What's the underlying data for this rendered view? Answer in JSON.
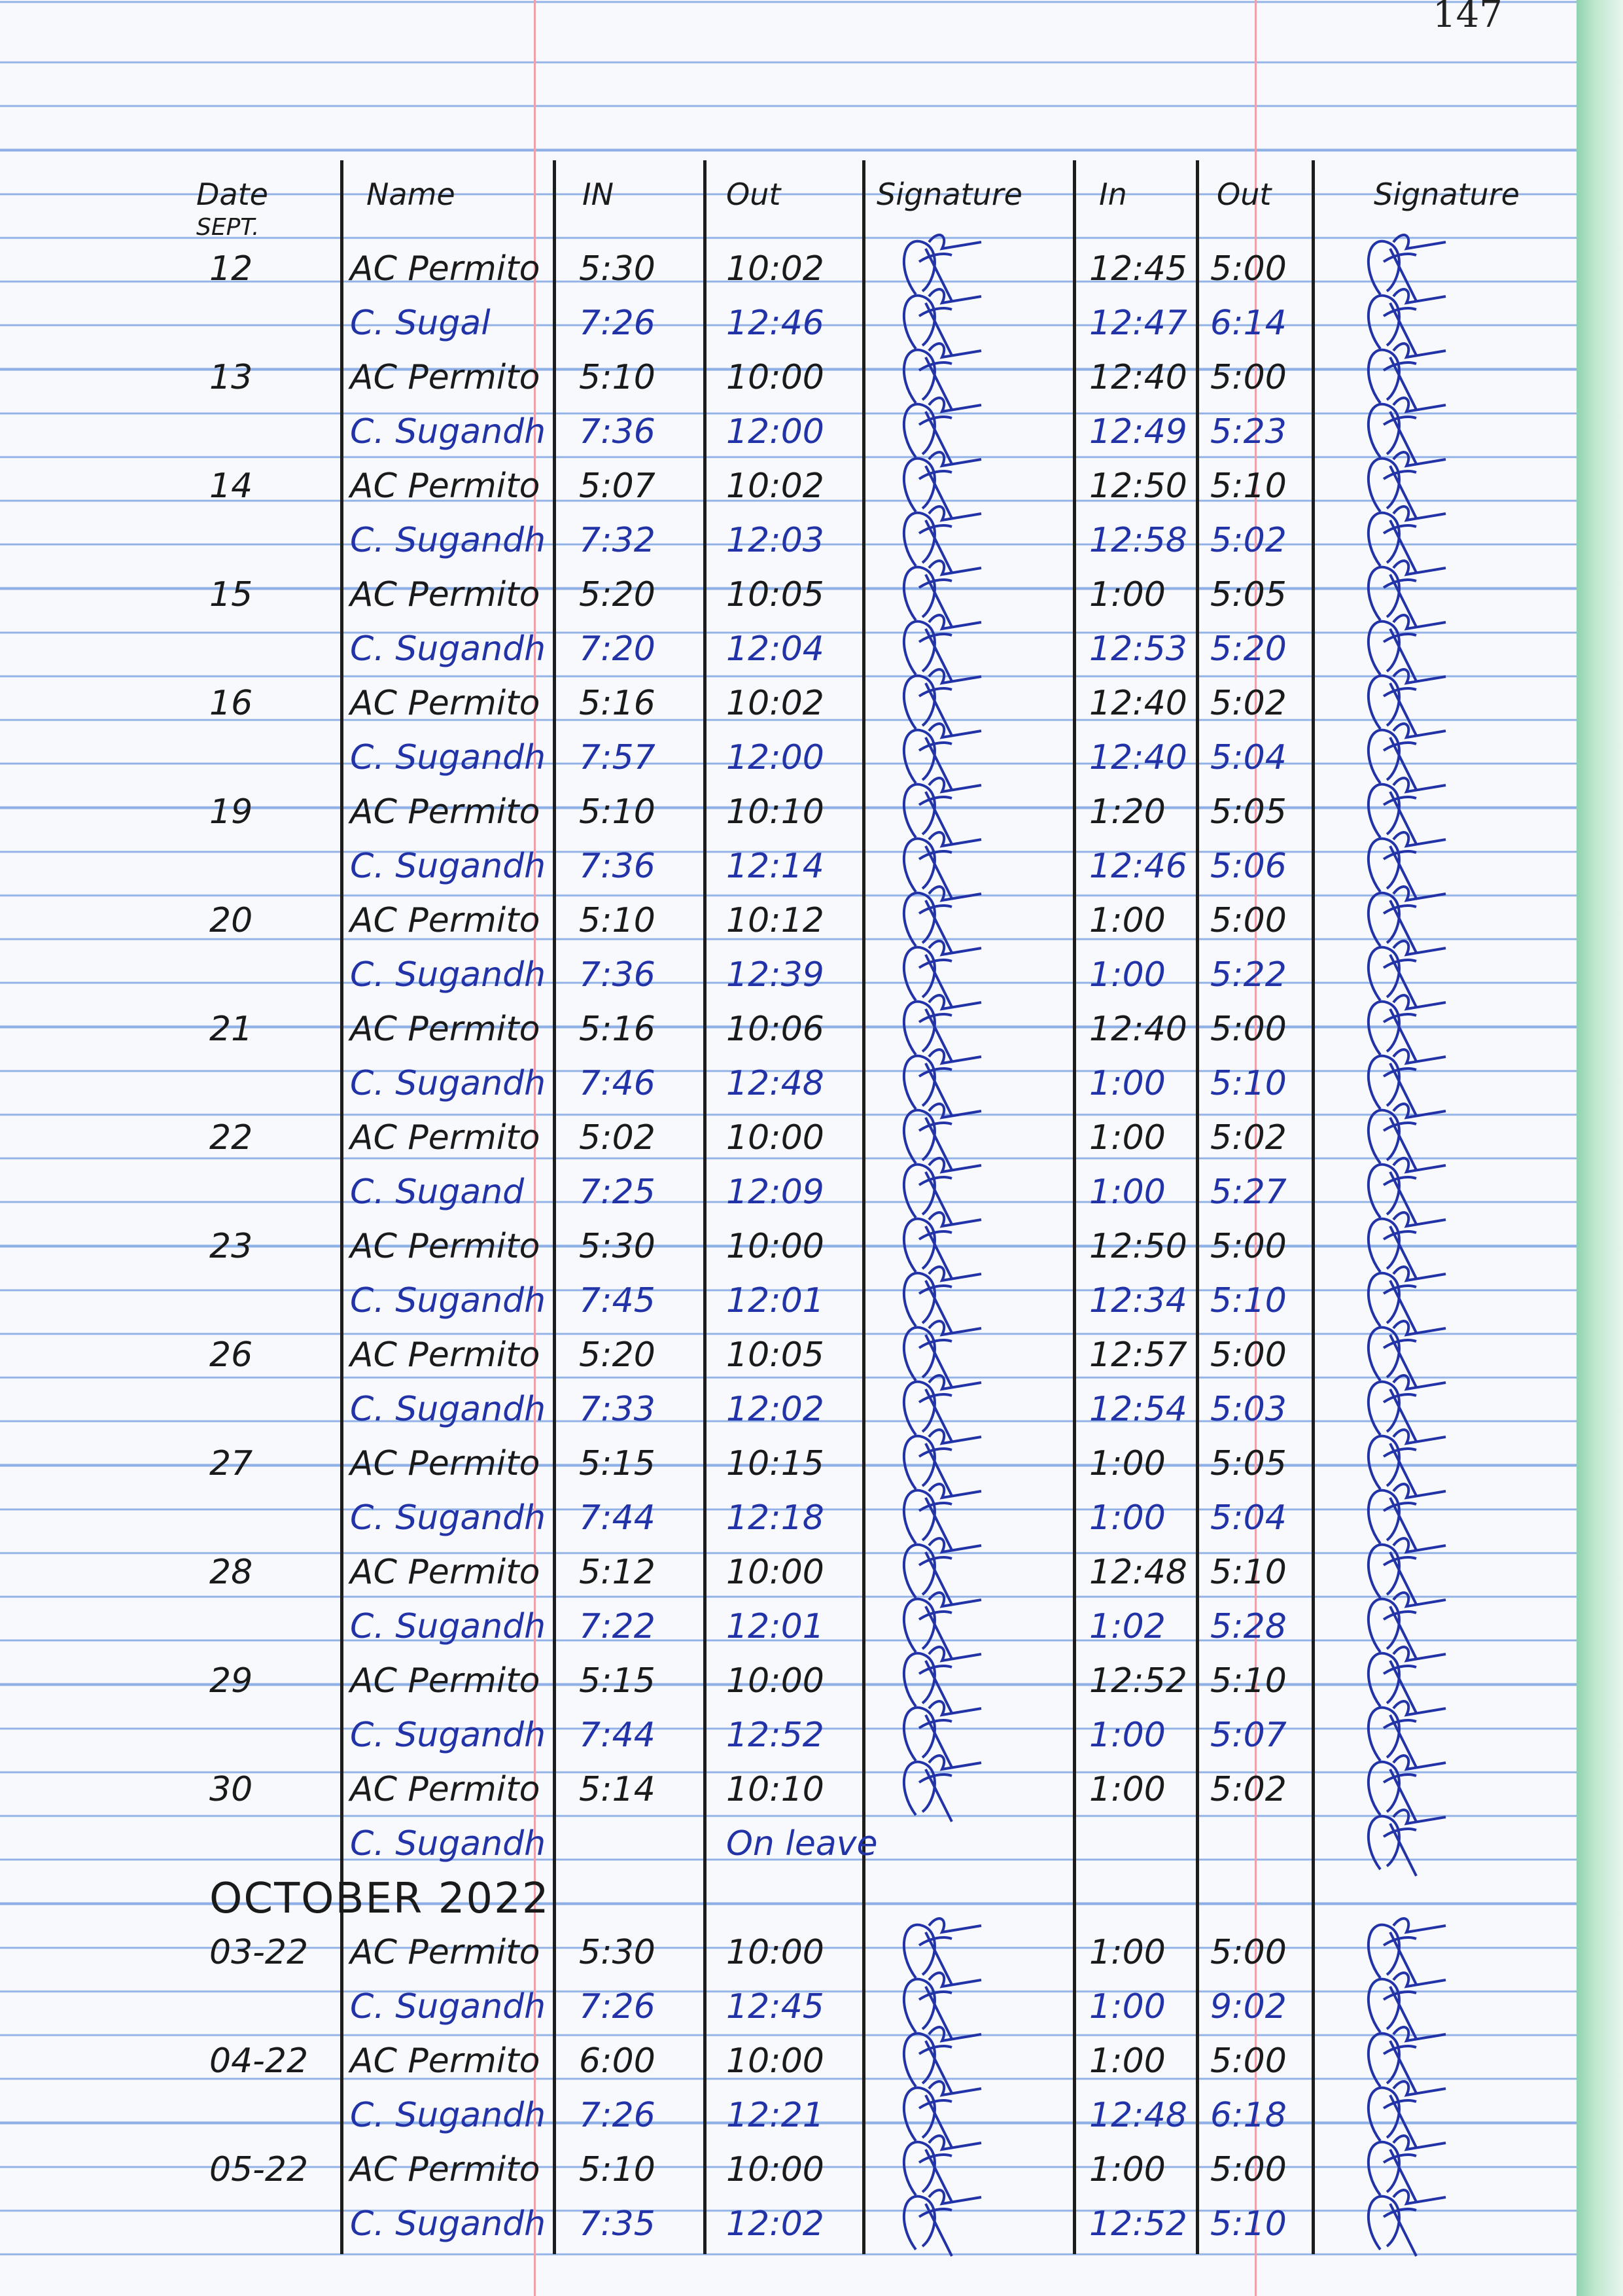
{
  "page_number": "147",
  "headers": {
    "date": "Date",
    "name": "Name",
    "in1": "IN",
    "out1": "Out",
    "sig1": "Signature",
    "in2": "In",
    "out2": "Out",
    "sig2": "Signature"
  },
  "month_label": "SEPT.",
  "october_heading": "OCTOBER 2022",
  "ink_colors": {
    "black": "#1a1a1a",
    "blue": "#2233a8"
  },
  "september_rows": [
    {
      "date": "12",
      "name": "AC Permito",
      "in1": "5:30",
      "out1": "10:02",
      "in2": "12:45",
      "out2": "5:00",
      "ink": "black"
    },
    {
      "date": "",
      "name": "C. Sugal",
      "in1": "7:26",
      "out1": "12:46",
      "in2": "12:47",
      "out2": "6:14",
      "ink": "blue"
    },
    {
      "date": "13",
      "name": "AC Permito",
      "in1": "5:10",
      "out1": "10:00",
      "in2": "12:40",
      "out2": "5:00",
      "ink": "black"
    },
    {
      "date": "",
      "name": "C. Sugandh",
      "in1": "7:36",
      "out1": "12:00",
      "in2": "12:49",
      "out2": "5:23",
      "ink": "blue"
    },
    {
      "date": "14",
      "name": "AC Permito",
      "in1": "5:07",
      "out1": "10:02",
      "in2": "12:50",
      "out2": "5:10",
      "ink": "black"
    },
    {
      "date": "",
      "name": "C. Sugandh",
      "in1": "7:32",
      "out1": "12:03",
      "in2": "12:58",
      "out2": "5:02",
      "ink": "blue"
    },
    {
      "date": "15",
      "name": "AC Permito",
      "in1": "5:20",
      "out1": "10:05",
      "in2": "1:00",
      "out2": "5:05",
      "ink": "black"
    },
    {
      "date": "",
      "name": "C. Sugandh",
      "in1": "7:20",
      "out1": "12:04",
      "in2": "12:53",
      "out2": "5:20",
      "ink": "blue"
    },
    {
      "date": "16",
      "name": "AC Permito",
      "in1": "5:16",
      "out1": "10:02",
      "in2": "12:40",
      "out2": "5:02",
      "ink": "black"
    },
    {
      "date": "",
      "name": "C. Sugandh",
      "in1": "7:57",
      "out1": "12:00",
      "in2": "12:40",
      "out2": "5:04",
      "ink": "blue"
    },
    {
      "date": "19",
      "name": "AC Permito",
      "in1": "5:10",
      "out1": "10:10",
      "in2": "1:20",
      "out2": "5:05",
      "ink": "black"
    },
    {
      "date": "",
      "name": "C. Sugandh",
      "in1": "7:36",
      "out1": "12:14",
      "in2": "12:46",
      "out2": "5:06",
      "ink": "blue"
    },
    {
      "date": "20",
      "name": "AC Permito",
      "in1": "5:10",
      "out1": "10:12",
      "in2": "1:00",
      "out2": "5:00",
      "ink": "black"
    },
    {
      "date": "",
      "name": "C. Sugandh",
      "in1": "7:36",
      "out1": "12:39",
      "in2": "1:00",
      "out2": "5:22",
      "ink": "blue"
    },
    {
      "date": "21",
      "name": "AC Permito",
      "in1": "5:16",
      "out1": "10:06",
      "in2": "12:40",
      "out2": "5:00",
      "ink": "black"
    },
    {
      "date": "",
      "name": "C. Sugandh",
      "in1": "7:46",
      "out1": "12:48",
      "in2": "1:00",
      "out2": "5:10",
      "ink": "blue"
    },
    {
      "date": "22",
      "name": "AC Permito",
      "in1": "5:02",
      "out1": "10:00",
      "in2": "1:00",
      "out2": "5:02",
      "ink": "black"
    },
    {
      "date": "",
      "name": "C. Sugand",
      "in1": "7:25",
      "out1": "12:09",
      "in2": "1:00",
      "out2": "5:27",
      "ink": "blue"
    },
    {
      "date": "23",
      "name": "AC Permito",
      "in1": "5:30",
      "out1": "10:00",
      "in2": "12:50",
      "out2": "5:00",
      "ink": "black"
    },
    {
      "date": "",
      "name": "C. Sugandh",
      "in1": "7:45",
      "out1": "12:01",
      "in2": "12:34",
      "out2": "5:10",
      "ink": "blue"
    },
    {
      "date": "26",
      "name": "AC Permito",
      "in1": "5:20",
      "out1": "10:05",
      "in2": "12:57",
      "out2": "5:00",
      "ink": "black"
    },
    {
      "date": "",
      "name": "C. Sugandh",
      "in1": "7:33",
      "out1": "12:02",
      "in2": "12:54",
      "out2": "5:03",
      "ink": "blue"
    },
    {
      "date": "27",
      "name": "AC Permito",
      "in1": "5:15",
      "out1": "10:15",
      "in2": "1:00",
      "out2": "5:05",
      "ink": "black"
    },
    {
      "date": "",
      "name": "C. Sugandh",
      "in1": "7:44",
      "out1": "12:18",
      "in2": "1:00",
      "out2": "5:04",
      "ink": "blue"
    },
    {
      "date": "28",
      "name": "AC Permito",
      "in1": "5:12",
      "out1": "10:00",
      "in2": "12:48",
      "out2": "5:10",
      "ink": "black"
    },
    {
      "date": "",
      "name": "C. Sugandh",
      "in1": "7:22",
      "out1": "12:01",
      "in2": "1:02",
      "out2": "5:28",
      "ink": "blue"
    },
    {
      "date": "29",
      "name": "AC Permito",
      "in1": "5:15",
      "out1": "10:00",
      "in2": "12:52",
      "out2": "5:10",
      "ink": "black"
    },
    {
      "date": "",
      "name": "C. Sugandh",
      "in1": "7:44",
      "out1": "12:52",
      "in2": "1:00",
      "out2": "5:07",
      "ink": "blue"
    },
    {
      "date": "30",
      "name": "AC Permito",
      "in1": "5:14",
      "out1": "10:10",
      "in2": "1:00",
      "out2": "5:02",
      "ink": "black"
    },
    {
      "date": "",
      "name": "C. Sugandh",
      "in1": "",
      "out1": "On leave",
      "in2": "",
      "out2": "",
      "ink": "blue"
    }
  ],
  "october_rows": [
    {
      "date": "03-22",
      "name": "AC Permito",
      "in1": "5:30",
      "out1": "10:00",
      "in2": "1:00",
      "out2": "5:00",
      "ink": "black"
    },
    {
      "date": "",
      "name": "C. Sugandh",
      "in1": "7:26",
      "out1": "12:45",
      "in2": "1:00",
      "out2": "9:02",
      "ink": "blue"
    },
    {
      "date": "04-22",
      "name": "AC Permito",
      "in1": "6:00",
      "out1": "10:00",
      "in2": "1:00",
      "out2": "5:00",
      "ink": "black"
    },
    {
      "date": "",
      "name": "C. Sugandh",
      "in1": "7:26",
      "out1": "12:21",
      "in2": "12:48",
      "out2": "6:18",
      "ink": "blue"
    },
    {
      "date": "05-22",
      "name": "AC Permito",
      "in1": "5:10",
      "out1": "10:00",
      "in2": "1:00",
      "out2": "5:00",
      "ink": "black"
    },
    {
      "date": "",
      "name": "C. Sugandh",
      "in1": "7:35",
      "out1": "12:02",
      "in2": "12:52",
      "out2": "5:10",
      "ink": "blue"
    }
  ]
}
